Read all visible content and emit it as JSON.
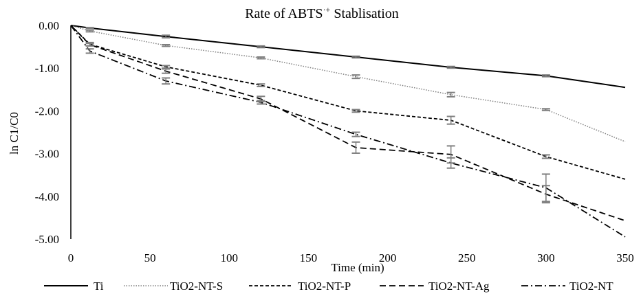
{
  "chart_data": {
    "type": "line",
    "title": "Rate of ABTS",
    "title_superscript": "·+",
    "title_suffix": " Stablisation",
    "xlabel": "Time (min)",
    "ylabel": "ln C1/C0",
    "xlim": [
      0,
      350
    ],
    "ylim": [
      -5,
      0
    ],
    "xticks": [
      0,
      50,
      100,
      150,
      200,
      250,
      300,
      350
    ],
    "xtick_labels": [
      "0",
      "50",
      "100",
      "150",
      "200",
      "250",
      "300",
      "350"
    ],
    "yticks": [
      0,
      -1,
      -2,
      -3,
      -4,
      -5
    ],
    "ytick_labels": [
      "0.00",
      "-1.00",
      "-2.00",
      "-3.00",
      "-4.00",
      "-5.00"
    ],
    "grid": false,
    "legend_position": "bottom",
    "x": [
      0,
      12,
      60,
      120,
      180,
      240,
      300,
      350
    ],
    "series": [
      {
        "name": "Ti",
        "style": "solid",
        "color": "#000000",
        "values": [
          0,
          -0.06,
          -0.26,
          -0.5,
          -0.74,
          -0.98,
          -1.18,
          -1.45
        ],
        "errors": [
          0,
          0.01,
          0.03,
          0.02,
          0.02,
          0.02,
          0.02,
          0
        ]
      },
      {
        "name": "TiO2-NT-S",
        "style": "dotted",
        "color": "#808080",
        "values": [
          0,
          -0.13,
          -0.47,
          -0.76,
          -1.2,
          -1.62,
          -1.97,
          -2.72
        ],
        "errors": [
          0,
          0.02,
          0.02,
          0.02,
          0.04,
          0.05,
          0.02,
          0
        ]
      },
      {
        "name": "TiO2-NT-P",
        "style": "short-dash",
        "color": "#000000",
        "values": [
          0,
          -0.44,
          -0.97,
          -1.4,
          -2.0,
          -2.22,
          -3.07,
          -3.6
        ],
        "errors": [
          0,
          0.04,
          0.03,
          0.03,
          0.03,
          0.09,
          0.04,
          0
        ]
      },
      {
        "name": "TiO2-NT-Ag",
        "style": "long-dash",
        "color": "#000000",
        "values": [
          0,
          -0.45,
          -1.07,
          -1.72,
          -2.86,
          -3.02,
          -3.95,
          -4.57
        ],
        "errors": [
          0,
          0.03,
          0.05,
          0.06,
          0.13,
          0.2,
          0.2,
          0
        ]
      },
      {
        "name": "TiO2-NT",
        "style": "dash-dot",
        "color": "#000000",
        "values": [
          0,
          -0.6,
          -1.3,
          -1.8,
          -2.55,
          -3.22,
          -3.8,
          -4.95
        ],
        "errors": [
          0,
          0.05,
          0.07,
          0.04,
          0.05,
          0.12,
          0.32,
          0
        ]
      }
    ]
  }
}
